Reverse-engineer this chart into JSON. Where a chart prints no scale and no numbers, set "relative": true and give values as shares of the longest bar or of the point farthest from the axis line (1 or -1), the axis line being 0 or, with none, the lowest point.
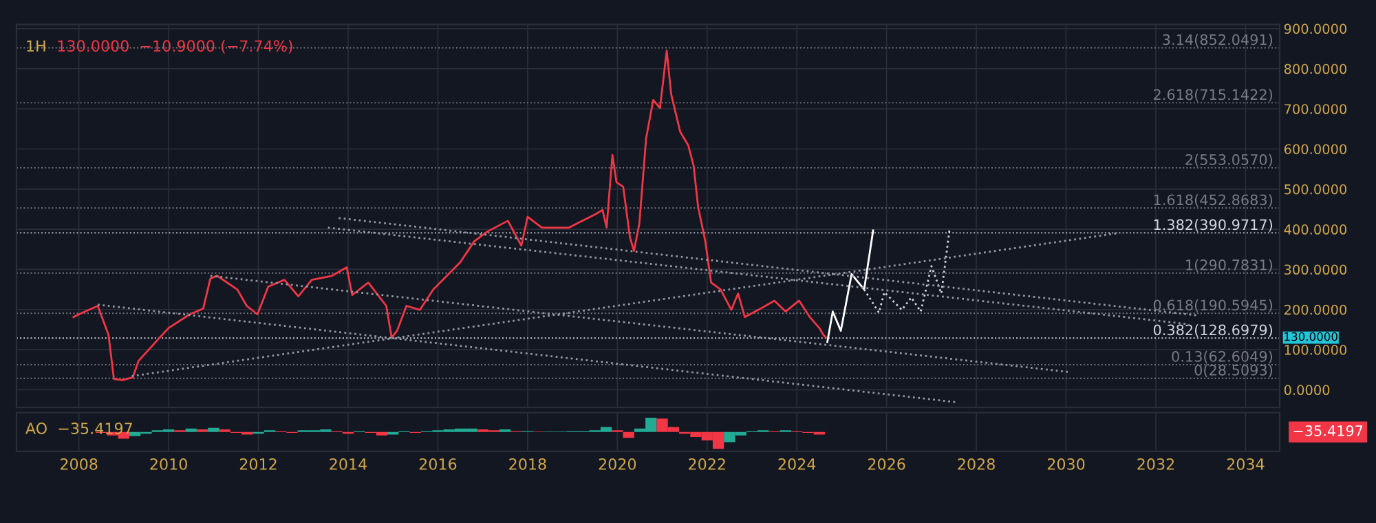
{
  "chart_data": [
    {
      "type": "line",
      "title": "1H",
      "subtitle": "130.0000  −10.9000 (−7.74%)",
      "xlim": [
        2006.61,
        2034.76
      ],
      "ylim": [
        -44,
        910
      ],
      "xticks": [
        2008,
        2010,
        2012,
        2014,
        2016,
        2018,
        2020,
        2022,
        2024,
        2026,
        2028,
        2030,
        2032,
        2034
      ],
      "yticks": [
        {
          "value": 0,
          "label": "0.0000"
        },
        {
          "value": 100,
          "label": "100.0000"
        },
        {
          "value": 200,
          "label": "200.0000"
        },
        {
          "value": 300,
          "label": "300.0000"
        },
        {
          "value": 400,
          "label": "400.0000"
        },
        {
          "value": 500,
          "label": "500.0000"
        },
        {
          "value": 600,
          "label": "600.0000"
        },
        {
          "value": 700,
          "label": "700.0000"
        },
        {
          "value": 800,
          "label": "800.0000"
        },
        {
          "value": 900,
          "label": "900.0000"
        }
      ],
      "tick_labels": "y",
      "grid": true,
      "legend": false,
      "series": [
        {
          "color": "#f23645",
          "line_style": "solid",
          "x": [
            2007.88,
            2008.0,
            2008.42,
            2008.66,
            2008.78,
            2008.97,
            2009.2,
            2009.33,
            2009.72,
            2010.0,
            2010.47,
            2010.77,
            2010.93,
            2011.08,
            2011.53,
            2011.74,
            2011.98,
            2012.22,
            2012.58,
            2012.89,
            2013.19,
            2013.64,
            2013.97,
            2014.09,
            2014.45,
            2014.85,
            2014.97,
            2015.09,
            2015.3,
            2015.6,
            2015.9,
            2016.2,
            2016.5,
            2016.81,
            2017.1,
            2017.56,
            2017.86,
            2018.0,
            2018.32,
            2018.92,
            2019.52,
            2019.67,
            2019.76,
            2019.89,
            2019.98,
            2020.13,
            2020.28,
            2020.37,
            2020.49,
            2020.64,
            2020.8,
            2020.95,
            2021.1,
            2021.2,
            2021.4,
            2021.58,
            2021.7,
            2021.8,
            2021.96,
            2022.09,
            2022.3,
            2022.54,
            2022.69,
            2022.84,
            2023.14,
            2023.5,
            2023.75,
            2024.05,
            2024.29,
            2024.5,
            2024.59,
            2024.65
          ],
          "values": [
            181,
            188,
            209,
            137,
            27,
            24,
            31,
            72,
            120,
            154,
            188,
            202,
            277,
            284,
            250,
            209,
            188,
            257,
            274,
            233,
            274,
            284,
            305,
            236,
            267,
            209,
            130,
            147,
            209,
            199,
            250,
            284,
            318,
            370,
            394,
            421,
            359,
            431,
            404,
            404,
            438,
            448,
            404,
            585,
            517,
            506,
            380,
            346,
            414,
            626,
            722,
            702,
            845,
            736,
            643,
            609,
            558,
            455,
            370,
            267,
            250,
            199,
            240,
            181,
            199,
            222,
            195,
            222,
            181,
            154,
            137,
            130
          ]
        },
        {
          "color": "#ffffff",
          "line_style": "solid",
          "x": [
            2024.68,
            2024.8,
            2024.98,
            2025.22,
            2025.5,
            2025.7
          ],
          "values": [
            119,
            195,
            147,
            288,
            250,
            397
          ]
        },
        {
          "color": "#d1d4dc",
          "line_style": "dotted",
          "x": [
            2025.5,
            2025.83,
            2025.95,
            2026.34,
            2026.55,
            2026.76,
            2027.0,
            2027.22,
            2027.4
          ],
          "values": [
            250,
            192,
            243,
            199,
            230,
            195,
            308,
            240,
            397
          ]
        },
        {
          "color": "#9598a1",
          "line_style": "dotted",
          "x": [
            2008.42,
            2027.55
          ],
          "values": [
            212,
            -31
          ]
        },
        {
          "color": "#9598a1",
          "line_style": "dotted",
          "x": [
            2010.93,
            2030.08
          ],
          "values": [
            284,
            44
          ]
        },
        {
          "color": "#9598a1",
          "line_style": "dotted",
          "x": [
            2013.79,
            2032.95
          ],
          "values": [
            428,
            185
          ]
        },
        {
          "color": "#9598a1",
          "line_style": "dotted",
          "x": [
            2013.55,
            2032.68
          ],
          "values": [
            404,
            164
          ]
        },
        {
          "color": "#9598a1",
          "line_style": "dotted",
          "x": [
            2009.18,
            2031.14
          ],
          "values": [
            34,
            390
          ]
        }
      ],
      "ref_lines": [
        {
          "axis": "y",
          "value": 852.0491,
          "label": "3.14(852.0491)",
          "color": "#787b86",
          "line_style": "dotted"
        },
        {
          "axis": "y",
          "value": 715.1422,
          "label": "2.618(715.1422)",
          "color": "#787b86",
          "line_style": "dotted"
        },
        {
          "axis": "y",
          "value": 553.057,
          "label": "2(553.0570)",
          "color": "#787b86",
          "line_style": "dotted"
        },
        {
          "axis": "y",
          "value": 452.8683,
          "label": "1.618(452.8683)",
          "color": "#787b86",
          "line_style": "dotted"
        },
        {
          "axis": "y",
          "value": 390.9717,
          "label": "1.382(390.9717)",
          "color": "#d1d4dc",
          "line_style": "dotted"
        },
        {
          "axis": "y",
          "value": 290.7831,
          "label": "1(290.7831)",
          "color": "#787b86",
          "line_style": "dotted"
        },
        {
          "axis": "y",
          "value": 190.5945,
          "label": "0.618(190.5945)",
          "color": "#787b86",
          "line_style": "dotted"
        },
        {
          "axis": "y",
          "value": 128.6979,
          "label": "0.382(128.6979)",
          "color": "#d1d4dc",
          "line_style": "dotted"
        },
        {
          "axis": "y",
          "value": 62.6049,
          "label": "0.13(62.6049)",
          "color": "#787b86",
          "line_style": "dotted"
        },
        {
          "axis": "y",
          "value": 28.5093,
          "label": "0(28.5093)",
          "color": "#787b86",
          "line_style": "dotted"
        }
      ],
      "annotations": [
        "130.0000"
      ]
    },
    {
      "type": "bar",
      "title": "AO  −35.4197",
      "relative": true,
      "tick_labels": "x",
      "grid": true,
      "xlim": [
        2006.61,
        2034.76
      ],
      "xticks": [
        2008,
        2010,
        2012,
        2014,
        2016,
        2018,
        2020,
        2022,
        2024,
        2026,
        2028,
        2030,
        2032,
        2034
      ],
      "x": [
        2008.5,
        2008.75,
        2009,
        2009.25,
        2009.5,
        2009.75,
        2010,
        2010.25,
        2010.5,
        2010.75,
        2011,
        2011.25,
        2011.5,
        2011.75,
        2012,
        2012.25,
        2012.5,
        2012.75,
        2013,
        2013.25,
        2013.5,
        2013.75,
        2014,
        2014.25,
        2014.5,
        2014.75,
        2015,
        2015.25,
        2015.5,
        2015.75,
        2016,
        2016.25,
        2016.5,
        2016.75,
        2017,
        2017.25,
        2017.5,
        2017.75,
        2018,
        2018.25,
        2018.5,
        2018.75,
        2019,
        2019.25,
        2019.5,
        2019.75,
        2020,
        2020.25,
        2020.5,
        2020.75,
        2021,
        2021.25,
        2021.5,
        2021.75,
        2022,
        2022.25,
        2022.5,
        2022.75,
        2023,
        2023.25,
        2023.5,
        2023.75,
        2024,
        2024.25,
        2024.5
      ],
      "values": [
        -0.05,
        -0.2,
        -0.4,
        -0.25,
        -0.1,
        0.1,
        0.15,
        0.1,
        0.2,
        0.15,
        0.25,
        0.15,
        -0.05,
        -0.15,
        -0.1,
        0.1,
        0.05,
        -0.05,
        0.1,
        0.1,
        0.15,
        0.05,
        -0.1,
        0.05,
        -0.05,
        -0.2,
        -0.15,
        0.05,
        -0.05,
        0.05,
        0.1,
        0.15,
        0.2,
        0.2,
        0.15,
        0.1,
        0.15,
        0.05,
        0.05,
        0.03,
        0.03,
        0.03,
        0.05,
        0.05,
        0.1,
        0.3,
        0.1,
        -0.35,
        0.2,
        0.85,
        0.8,
        0.3,
        -0.1,
        -0.3,
        -0.5,
        -1,
        -0.6,
        -0.2,
        0.05,
        0.1,
        0.05,
        0.1,
        0.05,
        -0.05,
        -0.15
      ],
      "colors": [
        "#f23645",
        "#f23645",
        "#f23645",
        "#22ab94",
        "#22ab94",
        "#22ab94",
        "#22ab94",
        "#f23645",
        "#22ab94",
        "#f23645",
        "#22ab94",
        "#f23645",
        "#f23645",
        "#f23645",
        "#22ab94",
        "#22ab94",
        "#f23645",
        "#f23645",
        "#22ab94",
        "#22ab94",
        "#22ab94",
        "#f23645",
        "#f23645",
        "#22ab94",
        "#f23645",
        "#f23645",
        "#22ab94",
        "#22ab94",
        "#f23645",
        "#22ab94",
        "#22ab94",
        "#22ab94",
        "#22ab94",
        "#22ab94",
        "#f23645",
        "#f23645",
        "#22ab94",
        "#f23645",
        "#22ab94",
        "#f23645",
        "#22ab94",
        "#22ab94",
        "#22ab94",
        "#22ab94",
        "#22ab94",
        "#22ab94",
        "#f23645",
        "#f23645",
        "#22ab94",
        "#22ab94",
        "#f23645",
        "#f23645",
        "#f23645",
        "#f23645",
        "#f23645",
        "#f23645",
        "#22ab94",
        "#22ab94",
        "#22ab94",
        "#22ab94",
        "#f23645",
        "#22ab94",
        "#f23645",
        "#f23645",
        "#f23645"
      ],
      "annotations": [
        "−35.4197"
      ]
    }
  ]
}
